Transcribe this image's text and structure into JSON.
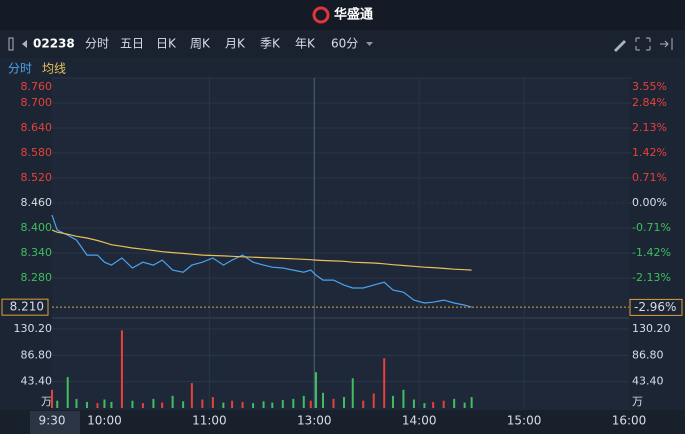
{
  "ui": {
    "brand": "华盛通",
    "code": "02238",
    "tabs": [
      "分时",
      "五日",
      "日K",
      "周K",
      "月K",
      "季K",
      "年K",
      "60分"
    ]
  },
  "chart_data": {
    "type": "line",
    "x": [
      0,
      3,
      9,
      14,
      20,
      26,
      30,
      34,
      40,
      46,
      52,
      58,
      63,
      69,
      75,
      80,
      86,
      92,
      98,
      103,
      109,
      115,
      121,
      126,
      132,
      138,
      144,
      148,
      151,
      155,
      161,
      167,
      172,
      178,
      184,
      190,
      195,
      201,
      207,
      213,
      218,
      224,
      230,
      236,
      240
    ],
    "series": [
      {
        "name": "分时",
        "color": "#4aa3f0",
        "values": [
          8.431,
          8.395,
          8.383,
          8.371,
          8.335,
          8.335,
          8.318,
          8.311,
          8.328,
          8.304,
          8.318,
          8.311,
          8.323,
          8.299,
          8.294,
          8.311,
          8.318,
          8.328,
          8.311,
          8.323,
          8.335,
          8.318,
          8.311,
          8.306,
          8.304,
          8.299,
          8.294,
          8.299,
          8.287,
          8.275,
          8.275,
          8.263,
          8.256,
          8.256,
          8.263,
          8.27,
          8.251,
          8.246,
          8.227,
          8.22,
          8.222,
          8.227,
          8.22,
          8.215,
          8.21
        ]
      },
      {
        "name": "均线",
        "color": "#e8c15a",
        "values": [
          8.395,
          8.39,
          8.385,
          8.38,
          8.376,
          8.37,
          8.365,
          8.36,
          8.356,
          8.352,
          8.349,
          8.346,
          8.343,
          8.341,
          8.339,
          8.337,
          8.335,
          8.334,
          8.333,
          8.332,
          8.331,
          8.33,
          8.329,
          8.328,
          8.327,
          8.326,
          8.325,
          8.324,
          8.323,
          8.322,
          8.321,
          8.32,
          8.318,
          8.317,
          8.316,
          8.314,
          8.312,
          8.31,
          8.308,
          8.306,
          8.305,
          8.303,
          8.301,
          8.3,
          8.299
        ]
      }
    ],
    "volume": [
      30,
      12,
      51,
      15,
      10,
      8,
      14,
      10,
      128,
      12,
      8,
      15,
      9,
      20,
      11,
      41,
      14,
      18,
      9,
      12,
      10,
      8,
      11,
      9,
      13,
      15,
      20,
      12,
      59,
      25,
      15,
      18,
      49,
      12,
      24,
      82,
      20,
      30,
      14,
      8,
      10,
      12,
      15,
      9,
      18
    ],
    "volume_unit": "万",
    "vlim": [
      0,
      130.2
    ],
    "vticks": [
      {
        "value": 130.2,
        "label": "130.20"
      },
      {
        "value": 86.8,
        "label": "86.80"
      },
      {
        "value": 43.4,
        "label": "43.40"
      }
    ],
    "xlim": [
      0,
      330
    ],
    "xticks": [
      {
        "value": 0,
        "label": "9:30"
      },
      {
        "value": 30,
        "label": "10:00"
      },
      {
        "value": 90,
        "label": "11:00"
      },
      {
        "value": 150,
        "label": "13:00"
      },
      {
        "value": 210,
        "label": "14:00"
      },
      {
        "value": 270,
        "label": "15:00"
      },
      {
        "value": 330,
        "label": "16:00"
      }
    ],
    "ylim": [
      8.19,
      8.76
    ],
    "yticks": [
      {
        "value": 8.76,
        "label": "8.760"
      },
      {
        "value": 8.7,
        "label": "8.700"
      },
      {
        "value": 8.64,
        "label": "8.640"
      },
      {
        "value": 8.58,
        "label": "8.580"
      },
      {
        "value": 8.52,
        "label": "8.520"
      },
      {
        "value": 8.46,
        "label": "8.460"
      },
      {
        "value": 8.4,
        "label": "8.400"
      },
      {
        "value": 8.34,
        "label": "8.340"
      },
      {
        "value": 8.28,
        "label": "8.280"
      }
    ],
    "y2lim": [
      -3.19,
      3.55
    ],
    "y2ticks": [
      {
        "value": 3.55,
        "label": "3.55%"
      },
      {
        "value": 2.84,
        "label": "2.84%"
      },
      {
        "value": 2.13,
        "label": "2.13%"
      },
      {
        "value": 1.42,
        "label": "1.42%"
      },
      {
        "value": 0.71,
        "label": "0.71%"
      },
      {
        "value": 0,
        "label": "0.00%"
      },
      {
        "value": -0.71,
        "label": "-0.71%"
      },
      {
        "value": -1.42,
        "label": "-1.42%"
      },
      {
        "value": -2.13,
        "label": "-2.13%"
      }
    ],
    "last_price": {
      "value": 8.21,
      "label": "8.210"
    },
    "last_change": {
      "value": -2.96,
      "label": "-2.96%"
    },
    "grid": true
  }
}
